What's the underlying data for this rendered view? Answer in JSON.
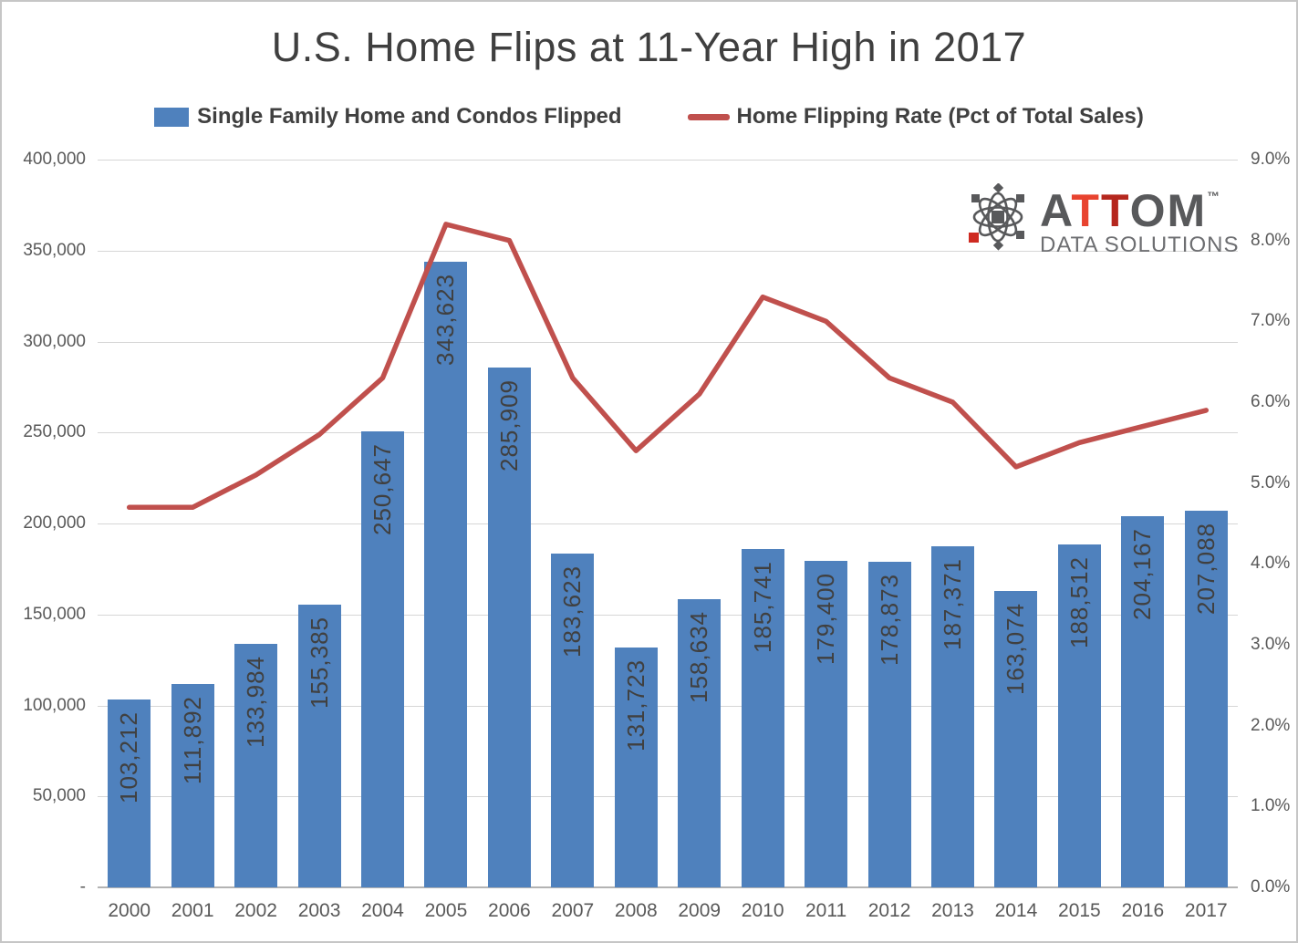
{
  "chart_data": {
    "type": "bar",
    "title": "U.S. Home Flips at 11-Year High in 2017",
    "categories": [
      "2000",
      "2001",
      "2002",
      "2003",
      "2004",
      "2005",
      "2006",
      "2007",
      "2008",
      "2009",
      "2010",
      "2011",
      "2012",
      "2013",
      "2014",
      "2015",
      "2016",
      "2017"
    ],
    "series": [
      {
        "name": "Single Family Home and Condos Flipped",
        "type": "bar",
        "y_axis": "primary",
        "color": "#4F81BD",
        "values": [
          103212,
          111892,
          133984,
          155385,
          250647,
          343623,
          285909,
          183623,
          131723,
          158634,
          185741,
          179400,
          178873,
          187371,
          163074,
          188512,
          204167,
          207088
        ],
        "labels": [
          "103,212",
          "111,892",
          "133,984",
          "155,385",
          "250,647",
          "343,623",
          "285,909",
          "183,623",
          "131,723",
          "158,634",
          "185,741",
          "179,400",
          "178,873",
          "187,371",
          "163,074",
          "188,512",
          "204,167",
          "207,088"
        ]
      },
      {
        "name": "Home Flipping Rate (Pct of Total Sales)",
        "type": "line",
        "y_axis": "secondary",
        "color": "#C0504D",
        "values": [
          4.7,
          4.7,
          5.1,
          5.6,
          6.3,
          8.2,
          8.0,
          6.3,
          5.4,
          6.1,
          7.3,
          7.0,
          6.3,
          6.0,
          5.2,
          5.5,
          5.7,
          5.9
        ]
      }
    ],
    "primary_axis": {
      "min": 0,
      "max": 400000,
      "ticks": [
        "400,000",
        "350,000",
        "300,000",
        "250,000",
        "200,000",
        "150,000",
        "100,000",
        "50,000",
        "-"
      ]
    },
    "secondary_axis": {
      "min": 0,
      "max": 9,
      "ticks": [
        "9.0%",
        "8.0%",
        "7.0%",
        "6.0%",
        "5.0%",
        "4.0%",
        "3.0%",
        "2.0%",
        "1.0%",
        "0.0%"
      ]
    },
    "grid": true,
    "legend_position": "top"
  },
  "logo": {
    "letter_a": "A",
    "letter_t1": "T",
    "letter_t2": "T",
    "letters_om": "OM",
    "trademark": "™",
    "tagline": "DATA SOLUTIONS"
  },
  "colors": {
    "bar": "#4F81BD",
    "line": "#C0504D",
    "title_text": "#3F3F3F",
    "axis_text": "#595959",
    "gridline": "#D6D6D6",
    "logo_gray": "#58595B",
    "logo_red_bright": "#E8432F",
    "logo_red_dark": "#B5271E"
  }
}
